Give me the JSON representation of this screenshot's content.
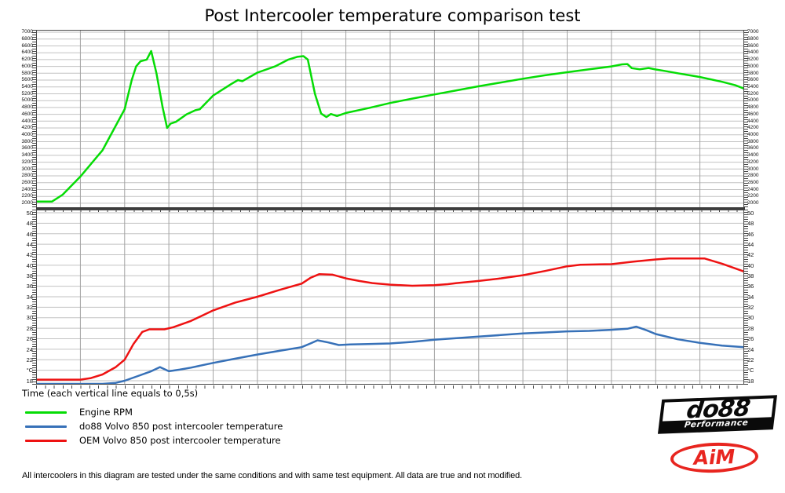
{
  "title": "Post Intercooler temperature comparison test",
  "x_axis_note": "Time (each vertical line equals to 0,5s)",
  "footnote": "All intercoolers in this diagram are tested under the same conditions and with same test equipment. All data are true and not modified.",
  "legend": [
    {
      "label": "Engine RPM",
      "color": "#05dc05"
    },
    {
      "label": "do88 Volvo 850 post intercooler temperature",
      "color": "#3771b8"
    },
    {
      "label": "OEM Volvo 850 post intercooler temperature",
      "color": "#ee1212"
    }
  ],
  "logos": {
    "do88": {
      "text": "do88",
      "sub": "Performance"
    },
    "aim": {
      "text": "AiM",
      "color": "#e8251f"
    }
  },
  "colors": {
    "grid_h": "#c2c2c2",
    "grid_v": "#a3a3a3",
    "frame": "#4a4a4a"
  },
  "chart_data": [
    {
      "type": "line",
      "pane": "top",
      "title": "Engine RPM",
      "xlabel": "Time (each vertical line equals to 0,5s)",
      "x_unit": "s",
      "xlim": [
        0,
        8
      ],
      "x_gridline_every_s": 0.5,
      "ylim": [
        1860,
        7070
      ],
      "yticks": {
        "max": 7000,
        "min": 2000,
        "step": 200
      },
      "ytick_labels": [
        "7000",
        "6800",
        "6600",
        "6400",
        "6200",
        "6000",
        "5800",
        "5600",
        "5400",
        "5200",
        "5000",
        "4800",
        "4600",
        "4400",
        "4200",
        "4000",
        "3800",
        "3600",
        "3400",
        "3200",
        "3000",
        "2800",
        "2600",
        "2400",
        "2200",
        "2000"
      ],
      "grid": true,
      "legend_position": "below",
      "series": [
        {
          "name": "Engine RPM",
          "color": "#05dc05",
          "points": [
            [
              0,
              2050
            ],
            [
              0.18,
              2050
            ],
            [
              0.3,
              2250
            ],
            [
              0.5,
              2780
            ],
            [
              0.75,
              3550
            ],
            [
              1.0,
              4750
            ],
            [
              1.08,
              5600
            ],
            [
              1.13,
              6000
            ],
            [
              1.18,
              6150
            ],
            [
              1.25,
              6200
            ],
            [
              1.3,
              6450
            ],
            [
              1.36,
              5800
            ],
            [
              1.43,
              4800
            ],
            [
              1.48,
              4200
            ],
            [
              1.52,
              4330
            ],
            [
              1.58,
              4380
            ],
            [
              1.7,
              4600
            ],
            [
              1.8,
              4720
            ],
            [
              1.85,
              4750
            ],
            [
              2.0,
              5150
            ],
            [
              2.2,
              5480
            ],
            [
              2.28,
              5600
            ],
            [
              2.33,
              5570
            ],
            [
              2.5,
              5820
            ],
            [
              2.7,
              6000
            ],
            [
              2.85,
              6200
            ],
            [
              2.95,
              6280
            ],
            [
              3.02,
              6300
            ],
            [
              3.07,
              6200
            ],
            [
              3.15,
              5200
            ],
            [
              3.22,
              4620
            ],
            [
              3.28,
              4520
            ],
            [
              3.33,
              4610
            ],
            [
              3.4,
              4550
            ],
            [
              3.5,
              4640
            ],
            [
              3.75,
              4780
            ],
            [
              4.0,
              4930
            ],
            [
              4.25,
              5060
            ],
            [
              4.5,
              5180
            ],
            [
              4.75,
              5300
            ],
            [
              5.0,
              5420
            ],
            [
              5.25,
              5530
            ],
            [
              5.5,
              5640
            ],
            [
              5.75,
              5740
            ],
            [
              6.0,
              5830
            ],
            [
              6.25,
              5915
            ],
            [
              6.5,
              6000
            ],
            [
              6.62,
              6060
            ],
            [
              6.68,
              6070
            ],
            [
              6.73,
              5950
            ],
            [
              6.82,
              5915
            ],
            [
              6.92,
              5955
            ],
            [
              7.0,
              5910
            ],
            [
              7.1,
              5870
            ],
            [
              7.25,
              5800
            ],
            [
              7.5,
              5690
            ],
            [
              7.75,
              5550
            ],
            [
              7.9,
              5450
            ],
            [
              8.0,
              5350
            ]
          ]
        }
      ]
    },
    {
      "type": "line",
      "pane": "bottom",
      "title": "Post intercooler temperature (°C)",
      "x_unit": "s",
      "xlim": [
        0,
        8
      ],
      "x_gridline_every_s": 0.5,
      "ylim": [
        17.25,
        50.6
      ],
      "yticks": {
        "max": 50,
        "min": 18,
        "step": 2
      },
      "ytick_labels": [
        "50",
        "48",
        "46",
        "44",
        "42",
        "40",
        "38",
        "36",
        "34",
        "32",
        "30",
        "28",
        "26",
        "24",
        "22",
        "°C",
        "18"
      ],
      "grid": true,
      "series": [
        {
          "name": "do88 Volvo 850 post intercooler temperature",
          "color": "#3771b8",
          "points": [
            [
              0,
              17.4
            ],
            [
              0.75,
              17.4
            ],
            [
              0.9,
              17.6
            ],
            [
              1.0,
              18.0
            ],
            [
              1.15,
              18.9
            ],
            [
              1.3,
              19.8
            ],
            [
              1.4,
              20.6
            ],
            [
              1.5,
              19.8
            ],
            [
              1.62,
              20.1
            ],
            [
              1.75,
              20.5
            ],
            [
              2.0,
              21.4
            ],
            [
              2.25,
              22.2
            ],
            [
              2.5,
              23.0
            ],
            [
              2.75,
              23.7
            ],
            [
              3.0,
              24.4
            ],
            [
              3.1,
              25.1
            ],
            [
              3.18,
              25.7
            ],
            [
              3.3,
              25.3
            ],
            [
              3.42,
              24.8
            ],
            [
              3.55,
              24.9
            ],
            [
              3.75,
              25.0
            ],
            [
              4.0,
              25.1
            ],
            [
              4.25,
              25.4
            ],
            [
              4.5,
              25.8
            ],
            [
              4.75,
              26.1
            ],
            [
              5.0,
              26.4
            ],
            [
              5.25,
              26.7
            ],
            [
              5.5,
              27.0
            ],
            [
              5.75,
              27.2
            ],
            [
              6.0,
              27.4
            ],
            [
              6.25,
              27.5
            ],
            [
              6.5,
              27.7
            ],
            [
              6.68,
              27.9
            ],
            [
              6.78,
              28.3
            ],
            [
              6.9,
              27.6
            ],
            [
              7.0,
              26.9
            ],
            [
              7.25,
              25.9
            ],
            [
              7.5,
              25.2
            ],
            [
              7.75,
              24.7
            ],
            [
              8.0,
              24.4
            ]
          ]
        },
        {
          "name": "OEM Volvo 850 post intercooler temperature",
          "color": "#ee1212",
          "points": [
            [
              0,
              18.2
            ],
            [
              0.5,
              18.2
            ],
            [
              0.62,
              18.5
            ],
            [
              0.75,
              19.2
            ],
            [
              0.9,
              20.6
            ],
            [
              1.0,
              22.0
            ],
            [
              1.1,
              25.0
            ],
            [
              1.2,
              27.3
            ],
            [
              1.28,
              27.8
            ],
            [
              1.45,
              27.8
            ],
            [
              1.55,
              28.2
            ],
            [
              1.75,
              29.4
            ],
            [
              2.0,
              31.4
            ],
            [
              2.25,
              32.9
            ],
            [
              2.5,
              34.0
            ],
            [
              2.75,
              35.3
            ],
            [
              3.0,
              36.5
            ],
            [
              3.1,
              37.6
            ],
            [
              3.2,
              38.3
            ],
            [
              3.35,
              38.2
            ],
            [
              3.5,
              37.5
            ],
            [
              3.65,
              37.0
            ],
            [
              3.8,
              36.6
            ],
            [
              4.0,
              36.3
            ],
            [
              4.25,
              36.1
            ],
            [
              4.5,
              36.2
            ],
            [
              4.65,
              36.4
            ],
            [
              4.75,
              36.6
            ],
            [
              5.0,
              37.0
            ],
            [
              5.25,
              37.5
            ],
            [
              5.5,
              38.1
            ],
            [
              5.75,
              38.9
            ],
            [
              6.0,
              39.8
            ],
            [
              6.15,
              40.1
            ],
            [
              6.5,
              40.2
            ],
            [
              6.75,
              40.7
            ],
            [
              7.0,
              41.1
            ],
            [
              7.15,
              41.3
            ],
            [
              7.55,
              41.3
            ],
            [
              7.75,
              40.3
            ],
            [
              8.0,
              38.8
            ]
          ]
        }
      ]
    }
  ]
}
